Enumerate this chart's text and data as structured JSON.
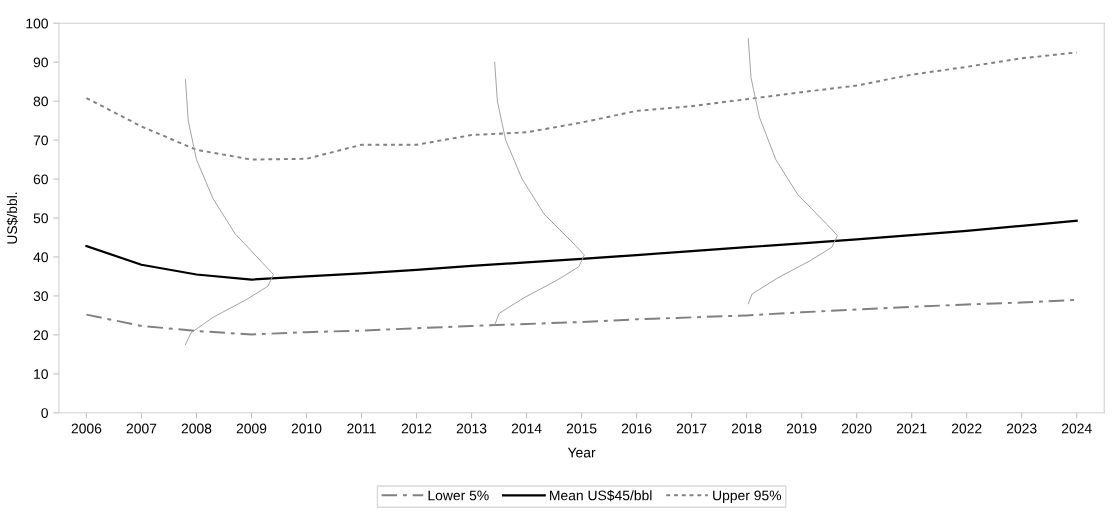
{
  "chart_data": {
    "type": "line",
    "xlabel": "Year",
    "ylabel": "US$/bbl.",
    "x": [
      2006,
      2007,
      2008,
      2009,
      2010,
      2011,
      2012,
      2013,
      2014,
      2015,
      2016,
      2017,
      2018,
      2019,
      2020,
      2021,
      2022,
      2023,
      2024
    ],
    "series": [
      {
        "name": "Lower 5%",
        "color": "#808080",
        "line_style": "dashed",
        "values": [
          25.2,
          22.3,
          21,
          20.1,
          20.7,
          21.1,
          21.7,
          22.3,
          22.8,
          23.3,
          24,
          24.5,
          25,
          25.8,
          26.5,
          27.2,
          27.8,
          28.3,
          29
        ]
      },
      {
        "name": "Mean US$45/bbl",
        "color": "#000000",
        "line_style": "solid",
        "values": [
          42.8,
          38,
          35.5,
          34.2,
          35,
          35.8,
          36.7,
          37.7,
          38.6,
          39.5,
          40.5,
          41.5,
          42.5,
          43.5,
          44.5,
          45.6,
          46.7,
          48,
          49.3
        ]
      },
      {
        "name": "Upper 95%",
        "color": "#808080",
        "line_style": "dotted",
        "values": [
          80.8,
          73.5,
          67.5,
          65,
          65.2,
          68.8,
          68.8,
          71.3,
          72,
          74.5,
          77.5,
          78.7,
          80.5,
          82.3,
          84,
          86.8,
          88.8,
          91,
          92.5
        ]
      },
      {
        "color": "#a0a0a0",
        "line_style": "solid",
        "x": [
          2007.8,
          2007.85,
          2008.0,
          2008.3,
          2008.7,
          2009.2,
          2009.4,
          2009.3,
          2008.9,
          2008.3,
          2007.9,
          2007.8
        ],
        "values": [
          85.5,
          75,
          65,
          55,
          46,
          38.5,
          35.5,
          32.5,
          29,
          24.5,
          20.5,
          17.5
        ]
      },
      {
        "color": "#a0a0a0",
        "line_style": "solid",
        "x": [
          2013.42,
          2013.47,
          2013.62,
          2013.92,
          2014.32,
          2014.85,
          2015.05,
          2014.95,
          2014.55,
          2013.95,
          2013.5,
          2013.42
        ],
        "values": [
          90,
          80,
          70,
          60,
          51,
          43.5,
          40.5,
          37.5,
          34,
          29.5,
          25.5,
          22.5
        ]
      },
      {
        "color": "#a0a0a0",
        "line_style": "solid",
        "x": [
          2018.03,
          2018.08,
          2018.23,
          2018.53,
          2018.93,
          2019.45,
          2019.65,
          2019.55,
          2019.15,
          2018.55,
          2018.1,
          2018.03
        ],
        "values": [
          96,
          86,
          76,
          65,
          56,
          48.5,
          45.5,
          42.5,
          39,
          34.5,
          30.5,
          28
        ]
      }
    ],
    "xlim": [
      2005.5,
      2024.5
    ],
    "xticks": [
      2006,
      2007,
      2008,
      2009,
      2010,
      2011,
      2012,
      2013,
      2014,
      2015,
      2016,
      2017,
      2018,
      2019,
      2020,
      2021,
      2022,
      2023,
      2024
    ],
    "ylim": [
      0,
      100
    ],
    "yticks": [
      0,
      10,
      20,
      30,
      40,
      50,
      60,
      70,
      80,
      90,
      100
    ],
    "grid": false,
    "legend": "bottom",
    "marker": "none"
  }
}
